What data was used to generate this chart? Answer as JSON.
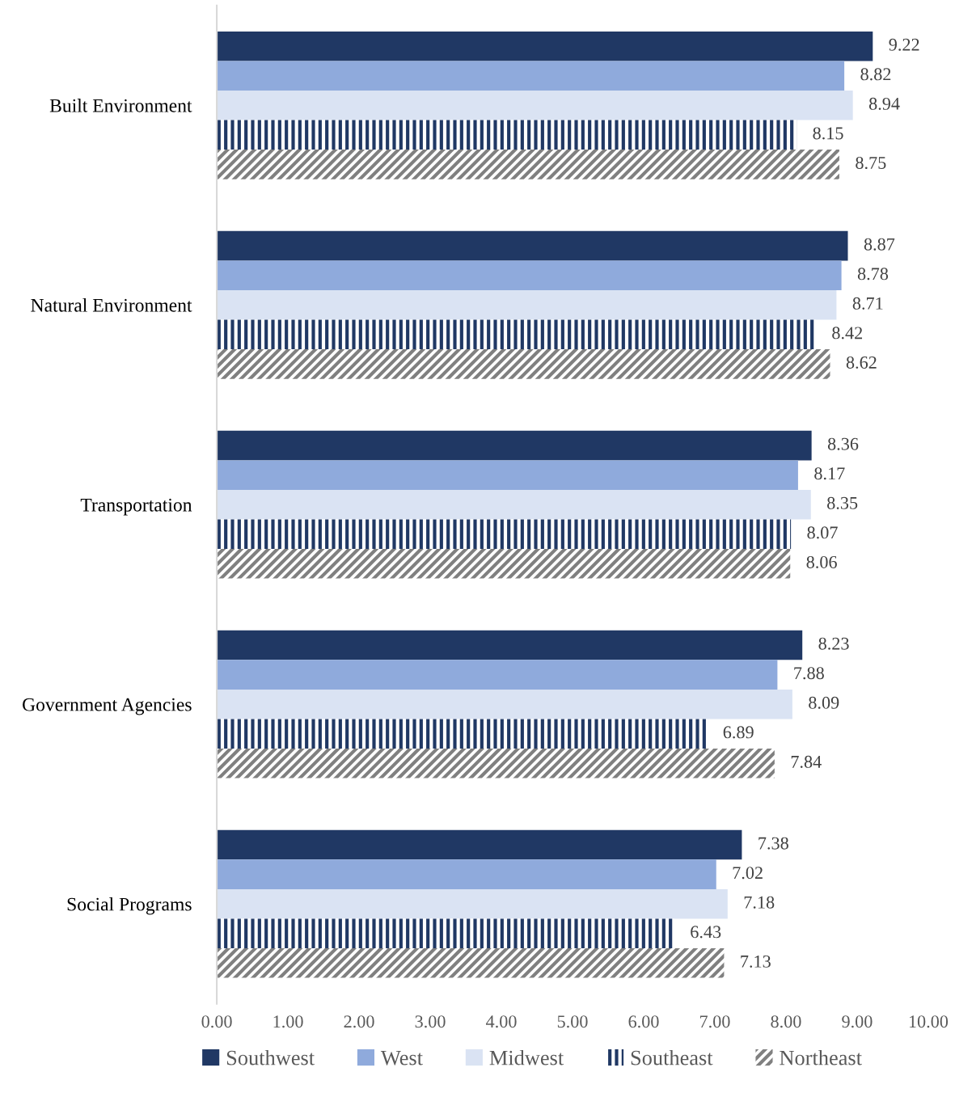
{
  "chart_data": {
    "type": "bar",
    "orientation": "horizontal",
    "categories": [
      "Built Environment",
      "Natural Environment",
      "Transportation",
      "Government Agencies",
      "Social Programs"
    ],
    "series": [
      {
        "name": "Southwest",
        "color": "#203864",
        "values": [
          9.22,
          8.87,
          8.36,
          8.23,
          7.38
        ]
      },
      {
        "name": "West",
        "color": "#8faadc",
        "values": [
          8.82,
          8.78,
          8.17,
          7.88,
          7.02
        ]
      },
      {
        "name": "Midwest",
        "color": "#dae3f3",
        "values": [
          8.94,
          8.71,
          8.35,
          8.09,
          7.18
        ]
      },
      {
        "name": "Southeast",
        "color": "#203864",
        "values": [
          8.15,
          8.42,
          8.07,
          6.89,
          6.43
        ]
      },
      {
        "name": "Northeast",
        "color": "#808080",
        "values": [
          8.75,
          8.62,
          8.06,
          7.84,
          7.13
        ]
      }
    ],
    "xlim": [
      0,
      10
    ],
    "xticks": [
      {
        "value": 0,
        "label": "0.00"
      },
      {
        "value": 1,
        "label": "1.00"
      },
      {
        "value": 2,
        "label": "2.00"
      },
      {
        "value": 3,
        "label": "3.00"
      },
      {
        "value": 4,
        "label": "4.00"
      },
      {
        "value": 5,
        "label": "5.00"
      },
      {
        "value": 6,
        "label": "6.00"
      },
      {
        "value": 7,
        "label": "7.00"
      },
      {
        "value": 8,
        "label": "8.00"
      },
      {
        "value": 9,
        "label": "9.00"
      },
      {
        "value": 10,
        "label": "10.00"
      }
    ],
    "data_labels": true,
    "grid": false,
    "legend": "bottom"
  }
}
